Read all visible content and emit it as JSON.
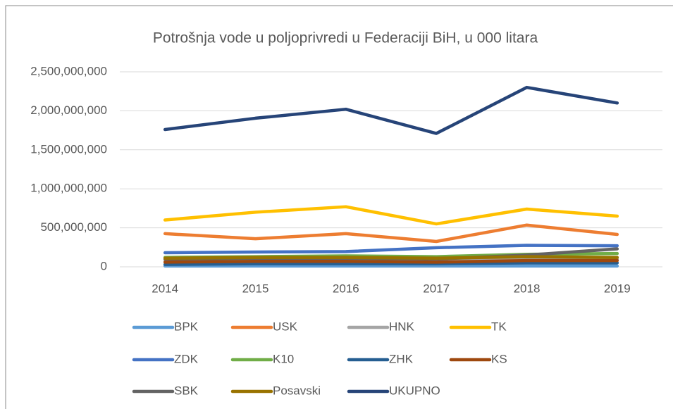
{
  "chart_data": {
    "type": "line",
    "title": "Potrošnja vode u poljoprivredi u Federaciji BiH, u 000 litara",
    "categories": [
      "2014",
      "2015",
      "2016",
      "2017",
      "2018",
      "2019"
    ],
    "series": [
      {
        "name": "BPK",
        "color": "#5b9bd5",
        "values": [
          10000000,
          10000000,
          10000000,
          10000000,
          10000000,
          10000000
        ]
      },
      {
        "name": "USK",
        "color": "#ed7d31",
        "values": [
          425000000,
          360000000,
          425000000,
          325000000,
          535000000,
          415000000
        ]
      },
      {
        "name": "HNK",
        "color": "#a5a5a5",
        "values": [
          90000000,
          100000000,
          100000000,
          90000000,
          110000000,
          100000000
        ]
      },
      {
        "name": "TK",
        "color": "#ffc000",
        "values": [
          600000000,
          700000000,
          770000000,
          550000000,
          740000000,
          650000000
        ]
      },
      {
        "name": "ZDK",
        "color": "#4472c4",
        "values": [
          180000000,
          190000000,
          195000000,
          245000000,
          275000000,
          270000000
        ]
      },
      {
        "name": "K10",
        "color": "#70ad47",
        "values": [
          120000000,
          130000000,
          140000000,
          130000000,
          160000000,
          170000000
        ]
      },
      {
        "name": "ZHK",
        "color": "#255e91",
        "values": [
          30000000,
          40000000,
          40000000,
          40000000,
          50000000,
          50000000
        ]
      },
      {
        "name": "KS",
        "color": "#9e480e",
        "values": [
          60000000,
          70000000,
          70000000,
          60000000,
          80000000,
          80000000
        ]
      },
      {
        "name": "SBK",
        "color": "#636363",
        "values": [
          100000000,
          110000000,
          110000000,
          100000000,
          150000000,
          230000000
        ]
      },
      {
        "name": "Posavski",
        "color": "#997300",
        "values": [
          110000000,
          120000000,
          120000000,
          110000000,
          130000000,
          120000000
        ]
      },
      {
        "name": "UKUPNO",
        "color": "#264478",
        "values": [
          1760000000,
          1905000000,
          2020000000,
          1710000000,
          2300000000,
          2100000000
        ]
      }
    ],
    "ylim": [
      0,
      2500000000
    ],
    "yticks": [
      0,
      {
        "value": 500000000,
        "label": "500,000,000"
      },
      {
        "value": 1000000000,
        "label": "1,000,000,000"
      },
      {
        "value": 1500000000,
        "label": "1,500,000,000"
      },
      {
        "value": 2000000000,
        "label": "2,000,000,000"
      },
      {
        "value": 2500000000,
        "label": "2,500,000,000"
      }
    ],
    "grid": true,
    "legend": "bottom"
  }
}
